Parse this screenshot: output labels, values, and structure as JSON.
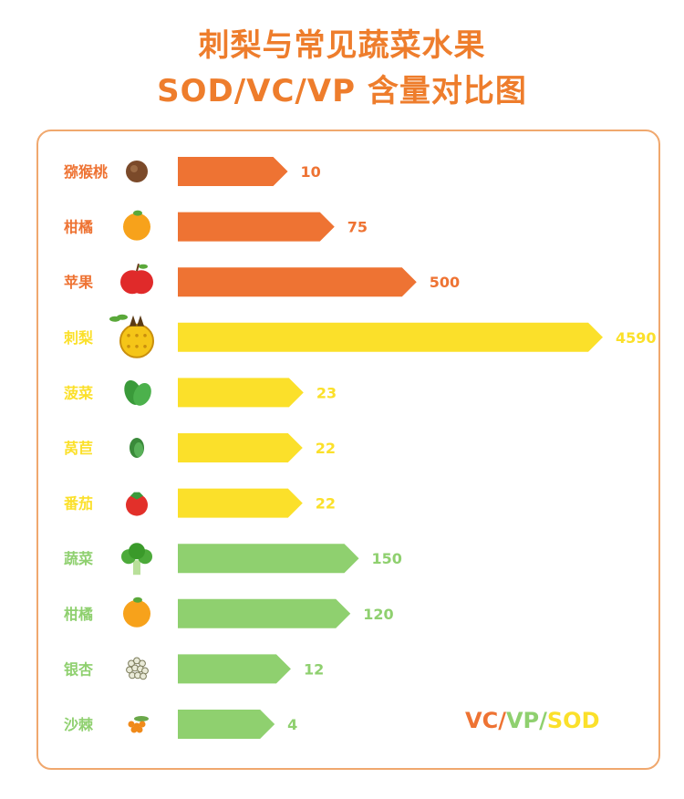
{
  "title_line_1": "刺梨与常见蔬菜水果",
  "title_line_2": "SOD/VC/VP 含量对比图",
  "colors": {
    "orange": "#ee7333",
    "yellow": "#fbe02a",
    "green": "#8fd06f",
    "title": "#ee7d2c",
    "frame": "#f0a86e"
  },
  "chart_data": {
    "type": "bar",
    "orientation": "horizontal",
    "categories": [
      "猕猴桃",
      "柑橘",
      "苹果",
      "刺梨",
      "菠菜",
      "莴苣",
      "番茄",
      "蔬菜",
      "柑橘",
      "银杏",
      "沙棘"
    ],
    "values": [
      10,
      75,
      500,
      4590,
      23,
      22,
      22,
      150,
      120,
      12,
      4
    ],
    "value_labels": [
      "10",
      "75",
      "500",
      "4590",
      "23",
      "22",
      "22",
      "150",
      "120",
      "12",
      "4"
    ],
    "groups": [
      "orange",
      "orange",
      "orange",
      "yellow",
      "yellow",
      "yellow",
      "yellow",
      "green",
      "green",
      "green",
      "green"
    ],
    "icons": [
      "kiwi-icon",
      "orange-fruit-icon",
      "apple-icon",
      "cili-fruit-icon",
      "spinach-icon",
      "lettuce-icon",
      "tomato-icon",
      "broccoli-icon",
      "orange-fruit-icon",
      "ginkgo-icon",
      "seabuckthorn-icon"
    ],
    "scale": "nonlinear (bar lengths not proportional)",
    "title": "刺梨与常见蔬菜水果 SOD/VC/VP 含量对比图"
  },
  "legend": {
    "vc": "VC",
    "sep1": "/",
    "vp": "VP",
    "sep2": "/",
    "sod": "SOD"
  }
}
